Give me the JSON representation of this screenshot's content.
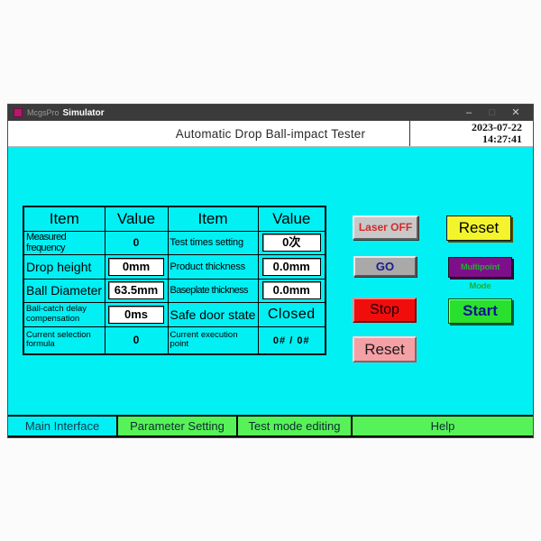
{
  "colors": {
    "main_background": "#00F0F4",
    "tab_green": "#57F257",
    "titlebar_background": "#3B3B3B",
    "button_yellow": "#F4F42C",
    "button_red": "#F20D0D",
    "button_green": "#2AE02E",
    "button_pink": "#F5A0A5",
    "button_purple": "#7D0F8A",
    "button_gray": "#C8C8C8"
  },
  "titlebar": {
    "brand": "McgsPro",
    "app_name": "Simulator",
    "minimize_glyph": "–",
    "maximize_glyph": "□",
    "close_glyph": "✕"
  },
  "header": {
    "title": "Automatic Drop Ball-impact Tester",
    "date": "2023-07-22",
    "time": "14:27:41"
  },
  "table": {
    "headers": [
      "Item",
      "Value",
      "Item",
      "Value"
    ],
    "rows": [
      {
        "item1": "Measured frequency",
        "value1": "0",
        "item2": "Test times setting",
        "value2": "0次"
      },
      {
        "item1": "Drop height",
        "value1": "0mm",
        "item2": "Product thickness",
        "value2": "0.0mm"
      },
      {
        "item1": "Ball Diameter",
        "value1": "63.5mm",
        "item2": "Baseplate thickness",
        "value2": "0.0mm"
      },
      {
        "item1": "Ball-catch delay compensation",
        "value1": "0ms",
        "item2": "Safe door state",
        "value2": "Closed"
      },
      {
        "item1": "Current selection formula",
        "value1": "0",
        "item2": "Current execution point",
        "value2": "0#  /  0#"
      }
    ]
  },
  "buttons": {
    "laser": "Laser OFF",
    "reset_top": "Reset",
    "go": "GO",
    "multipoint": "Multipoint Mode",
    "stop": "Stop",
    "start": "Start",
    "reset_bottom": "Reset"
  },
  "tabs": [
    {
      "label": "Main Interface"
    },
    {
      "label": "Parameter Setting"
    },
    {
      "label": "Test mode editing"
    },
    {
      "label": "Help"
    }
  ]
}
